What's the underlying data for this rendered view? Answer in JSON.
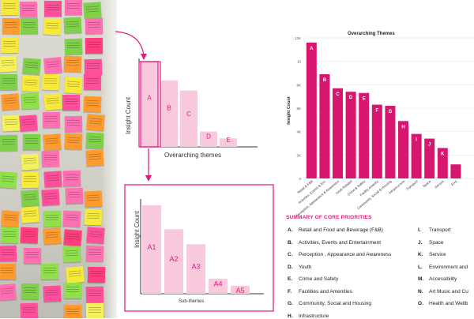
{
  "diagram": {
    "top_chart": {
      "ylabel": "Insight Count",
      "xlabel": "Overarching themes",
      "bars": [
        {
          "label": "A",
          "value": 100,
          "highlight": true
        },
        {
          "label": "B",
          "value": 78
        },
        {
          "label": "C",
          "value": 66
        },
        {
          "label": "D",
          "value": 18
        },
        {
          "label": "E",
          "value": 10
        }
      ]
    },
    "bottom_chart": {
      "ylabel": "Insight Count",
      "xlabel": "Sub-themes",
      "bars": [
        {
          "label": "A1",
          "value": 100
        },
        {
          "label": "A2",
          "value": 73
        },
        {
          "label": "A3",
          "value": 56
        },
        {
          "label": "A4",
          "value": 17
        },
        {
          "label": "A5",
          "value": 9
        }
      ]
    },
    "colors": {
      "pink_fill": "#f8c9dd",
      "pink_stroke": "#e0197d"
    }
  },
  "chart_data": {
    "type": "bar",
    "title": "Overarching Themes",
    "ylabel": "Insight Count",
    "ylim": [
      0,
      120
    ],
    "yticks": [
      "0",
      "2K",
      "4K",
      "6K",
      "8K",
      "10",
      "12K"
    ],
    "categories": [
      "Retail & F&B",
      "Activities, Events & Ent.",
      "Perception, Appearance & Awareness",
      "Youth Related",
      "Crime & Safety",
      "Facility Amenity",
      "Community, Social & Housing",
      "Infrastructure",
      "Transport",
      "Space",
      "Service",
      "Envi"
    ],
    "bar_labels": [
      "A",
      "B",
      "C",
      "D",
      "E",
      "F",
      "G",
      "H",
      "I",
      "J",
      "K",
      ""
    ],
    "values": [
      116,
      89,
      77,
      74,
      73,
      63,
      62,
      49,
      38,
      34,
      26,
      12
    ],
    "bar_color": "#d6166f"
  },
  "summary": {
    "title": "SUMMARY OF CORE PRIORITIES",
    "left": [
      {
        "key": "A.",
        "text": "Retail and Food and Beverage (F&B)"
      },
      {
        "key": "B.",
        "text": "Activities, Events and Entertainment"
      },
      {
        "key": "C.",
        "text": "Perception , Appearance and Awareness"
      },
      {
        "key": "D.",
        "text": "Youth"
      },
      {
        "key": "E.",
        "text": "Crime and Safety"
      },
      {
        "key": "F.",
        "text": "Facilities and Amenities"
      },
      {
        "key": "G.",
        "text": "Community, Social and Housing"
      },
      {
        "key": "H.",
        "text": "Infrastructure"
      }
    ],
    "right": [
      {
        "key": "I.",
        "text": "Transport"
      },
      {
        "key": "J.",
        "text": "Space"
      },
      {
        "key": "K.",
        "text": "Service"
      },
      {
        "key": "L.",
        "text": "Environment and"
      },
      {
        "key": "M.",
        "text": "Accessibility"
      },
      {
        "key": "N.",
        "text": "Art Music and Cu"
      },
      {
        "key": "O.",
        "text": "Health and Wellb"
      }
    ]
  }
}
